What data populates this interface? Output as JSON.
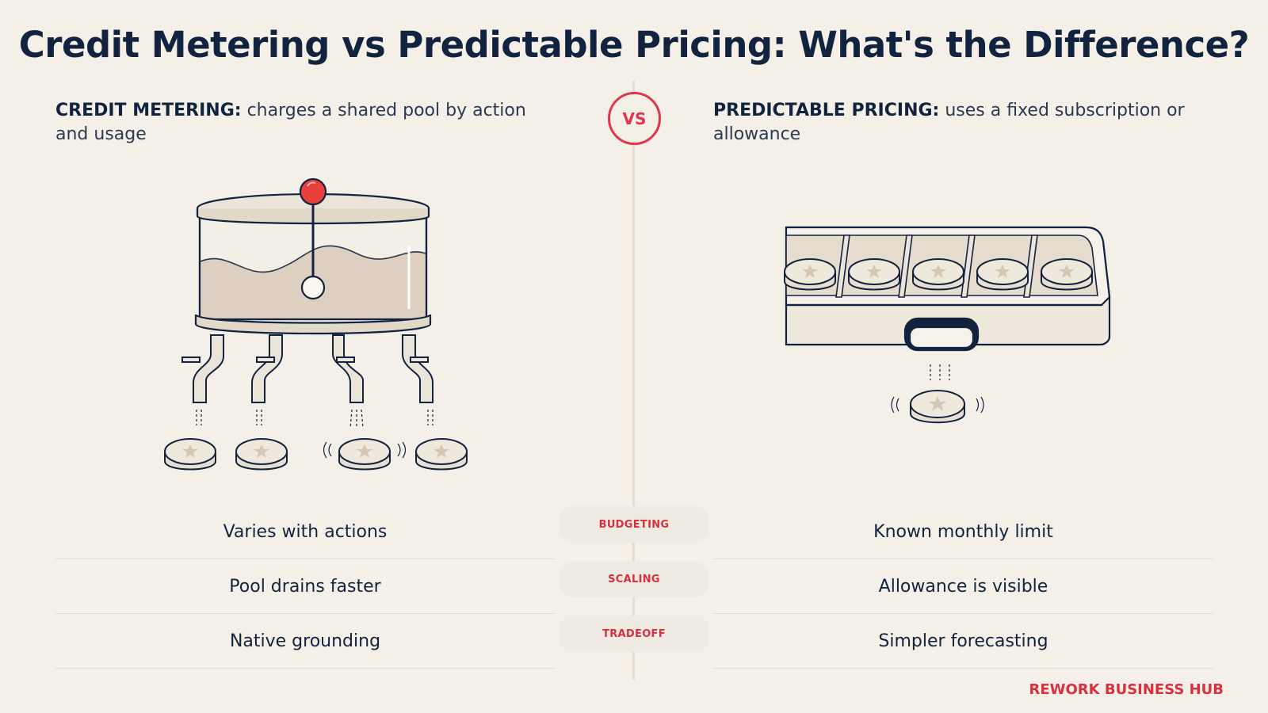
{
  "title": "Credit Metering vs Predictable Pricing: What's the Difference?",
  "vs_label": "VS",
  "left": {
    "heading_strong": "CREDIT METERING:",
    "heading_text": "charges a shared pool by action and usage"
  },
  "right": {
    "heading_strong": "PREDICTABLE PRICING:",
    "heading_text": "uses a fixed subscription or allowance"
  },
  "rows": [
    {
      "label": "BUDGETING",
      "left": "Varies with actions",
      "right": "Known monthly limit"
    },
    {
      "label": "SCALING",
      "left": "Pool drains faster",
      "right": "Allowance is visible"
    },
    {
      "label": "TRADEOFF",
      "left": "Native grounding",
      "right": "Simpler forecasting"
    }
  ],
  "brand": "REWORK BUSINESS HUB",
  "colors": {
    "background": "#f4f0e8",
    "navy": "#12233f",
    "accent_red": "#e0354a",
    "token_beige": "#e8dfd2"
  },
  "icons": [
    "credit-pool-tank-icon",
    "faucet-icon",
    "star-token-icon",
    "allowance-tray-icon"
  ]
}
